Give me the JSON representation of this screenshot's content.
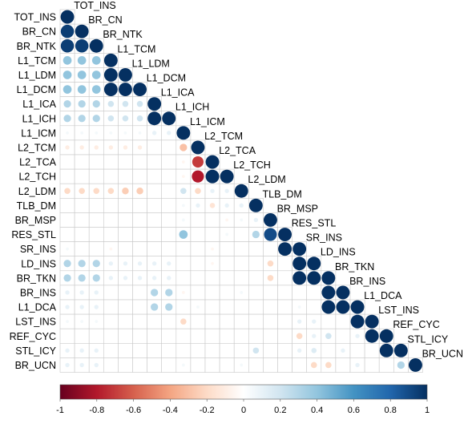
{
  "chart_data": {
    "type": "heatmap",
    "variables": [
      "TOT_INS",
      "BR_CN",
      "BR_NTK",
      "L1_TCM",
      "L1_LDM",
      "L1_DCM",
      "L1_ICA",
      "L1_ICH",
      "L1_ICM",
      "L2_TCM",
      "L2_TCA",
      "L2_TCH",
      "L2_LDM",
      "TLB_DM",
      "BR_MSP",
      "RES_STL",
      "SR_INS",
      "LD_INS",
      "BR_TKN",
      "BR_INS",
      "L1_DCA",
      "LST_INS",
      "REF_CYC",
      "STL_ICY",
      "BR_UCN"
    ],
    "matrix_layout": "lower-triangle with diagonal",
    "correlations": [
      {
        "row": "TOT_INS",
        "col": "TOT_INS",
        "value": 1.0
      },
      {
        "row": "BR_CN",
        "col": "TOT_INS",
        "value": 0.95
      },
      {
        "row": "BR_CN",
        "col": "BR_CN",
        "value": 1.0
      },
      {
        "row": "BR_NTK",
        "col": "TOT_INS",
        "value": 0.95
      },
      {
        "row": "BR_NTK",
        "col": "BR_CN",
        "value": 0.95
      },
      {
        "row": "BR_NTK",
        "col": "BR_NTK",
        "value": 1.0
      },
      {
        "row": "L1_TCM",
        "col": "TOT_INS",
        "value": 0.4
      },
      {
        "row": "L1_TCM",
        "col": "BR_CN",
        "value": 0.4
      },
      {
        "row": "L1_TCM",
        "col": "BR_NTK",
        "value": 0.4
      },
      {
        "row": "L1_TCM",
        "col": "L1_TCM",
        "value": 1.0
      },
      {
        "row": "L1_LDM",
        "col": "TOT_INS",
        "value": 0.4
      },
      {
        "row": "L1_LDM",
        "col": "BR_CN",
        "value": 0.4
      },
      {
        "row": "L1_LDM",
        "col": "BR_NTK",
        "value": 0.4
      },
      {
        "row": "L1_LDM",
        "col": "L1_TCM",
        "value": 1.0
      },
      {
        "row": "L1_LDM",
        "col": "L1_LDM",
        "value": 1.0
      },
      {
        "row": "L1_DCM",
        "col": "TOT_INS",
        "value": 0.4
      },
      {
        "row": "L1_DCM",
        "col": "BR_CN",
        "value": 0.4
      },
      {
        "row": "L1_DCM",
        "col": "BR_NTK",
        "value": 0.4
      },
      {
        "row": "L1_DCM",
        "col": "L1_TCM",
        "value": 1.0
      },
      {
        "row": "L1_DCM",
        "col": "L1_LDM",
        "value": 1.0
      },
      {
        "row": "L1_DCM",
        "col": "L1_DCM",
        "value": 1.0
      },
      {
        "row": "L1_ICA",
        "col": "TOT_INS",
        "value": 0.3
      },
      {
        "row": "L1_ICA",
        "col": "BR_CN",
        "value": 0.3
      },
      {
        "row": "L1_ICA",
        "col": "BR_NTK",
        "value": 0.3
      },
      {
        "row": "L1_ICA",
        "col": "L1_TCM",
        "value": 0.2
      },
      {
        "row": "L1_ICA",
        "col": "L1_LDM",
        "value": 0.2
      },
      {
        "row": "L1_ICA",
        "col": "L1_DCM",
        "value": 0.2
      },
      {
        "row": "L1_ICA",
        "col": "L1_ICA",
        "value": 1.0
      },
      {
        "row": "L1_ICH",
        "col": "TOT_INS",
        "value": 0.3
      },
      {
        "row": "L1_ICH",
        "col": "BR_CN",
        "value": 0.3
      },
      {
        "row": "L1_ICH",
        "col": "BR_NTK",
        "value": 0.3
      },
      {
        "row": "L1_ICH",
        "col": "L1_TCM",
        "value": 0.2
      },
      {
        "row": "L1_ICH",
        "col": "L1_LDM",
        "value": 0.2
      },
      {
        "row": "L1_ICH",
        "col": "L1_DCM",
        "value": 0.2
      },
      {
        "row": "L1_ICH",
        "col": "L1_ICA",
        "value": 1.0
      },
      {
        "row": "L1_ICH",
        "col": "L1_ICH",
        "value": 1.0
      },
      {
        "row": "L1_ICM",
        "col": "TOT_INS",
        "value": 0.05
      },
      {
        "row": "L1_ICM",
        "col": "BR_CN",
        "value": 0.05
      },
      {
        "row": "L1_ICM",
        "col": "BR_NTK",
        "value": 0.05
      },
      {
        "row": "L1_ICM",
        "col": "L1_TCM",
        "value": 0.05
      },
      {
        "row": "L1_ICM",
        "col": "L1_LDM",
        "value": 0.05
      },
      {
        "row": "L1_ICM",
        "col": "L1_DCM",
        "value": 0.05
      },
      {
        "row": "L1_ICM",
        "col": "L1_ICA",
        "value": 0.1
      },
      {
        "row": "L1_ICM",
        "col": "L1_ICH",
        "value": 0.1
      },
      {
        "row": "L1_ICM",
        "col": "L1_ICM",
        "value": 1.0
      },
      {
        "row": "L2_TCM",
        "col": "TOT_INS",
        "value": -0.1
      },
      {
        "row": "L2_TCM",
        "col": "BR_CN",
        "value": -0.1
      },
      {
        "row": "L2_TCM",
        "col": "BR_NTK",
        "value": -0.1
      },
      {
        "row": "L2_TCM",
        "col": "L1_TCM",
        "value": -0.1
      },
      {
        "row": "L2_TCM",
        "col": "L1_LDM",
        "value": -0.1
      },
      {
        "row": "L2_TCM",
        "col": "L1_DCM",
        "value": -0.1
      },
      {
        "row": "L2_TCM",
        "col": "L1_ICA",
        "value": 0.0
      },
      {
        "row": "L2_TCM",
        "col": "L1_ICH",
        "value": 0.0
      },
      {
        "row": "L2_TCM",
        "col": "L1_ICM",
        "value": -0.3
      },
      {
        "row": "L2_TCM",
        "col": "L2_TCM",
        "value": 1.0
      },
      {
        "row": "L2_TCA",
        "col": "L1_ICM",
        "value": -0.05
      },
      {
        "row": "L2_TCA",
        "col": "L2_TCM",
        "value": -0.7
      },
      {
        "row": "L2_TCA",
        "col": "L2_TCA",
        "value": 1.0
      },
      {
        "row": "L2_TCH",
        "col": "L1_ICM",
        "value": -0.05
      },
      {
        "row": "L2_TCH",
        "col": "L2_TCM",
        "value": -0.8
      },
      {
        "row": "L2_TCH",
        "col": "L2_TCA",
        "value": 1.0
      },
      {
        "row": "L2_TCH",
        "col": "L2_TCH",
        "value": 1.0
      },
      {
        "row": "L2_LDM",
        "col": "TOT_INS",
        "value": -0.2
      },
      {
        "row": "L2_LDM",
        "col": "BR_CN",
        "value": -0.2
      },
      {
        "row": "L2_LDM",
        "col": "BR_NTK",
        "value": -0.2
      },
      {
        "row": "L2_LDM",
        "col": "L1_TCM",
        "value": -0.2
      },
      {
        "row": "L2_LDM",
        "col": "L1_LDM",
        "value": -0.25
      },
      {
        "row": "L2_LDM",
        "col": "L1_DCM",
        "value": -0.25
      },
      {
        "row": "L2_LDM",
        "col": "L1_ICA",
        "value": 0.0
      },
      {
        "row": "L2_LDM",
        "col": "L1_ICH",
        "value": 0.0
      },
      {
        "row": "L2_LDM",
        "col": "L1_ICM",
        "value": 0.2
      },
      {
        "row": "L2_LDM",
        "col": "L2_TCM",
        "value": -0.2
      },
      {
        "row": "L2_LDM",
        "col": "L2_TCA",
        "value": 0.1
      },
      {
        "row": "L2_LDM",
        "col": "L2_TCH",
        "value": 0.1
      },
      {
        "row": "L2_LDM",
        "col": "L2_LDM",
        "value": 1.0
      },
      {
        "row": "TLB_DM",
        "col": "L1_ICM",
        "value": 0.05
      },
      {
        "row": "TLB_DM",
        "col": "L2_TCM",
        "value": 0.1
      },
      {
        "row": "TLB_DM",
        "col": "L2_TCA",
        "value": -0.15
      },
      {
        "row": "TLB_DM",
        "col": "L2_TCH",
        "value": 0.1
      },
      {
        "row": "TLB_DM",
        "col": "L2_LDM",
        "value": 0.1
      },
      {
        "row": "TLB_DM",
        "col": "TLB_DM",
        "value": 1.0
      },
      {
        "row": "BR_MSP",
        "col": "L1_ICM",
        "value": 0.05
      },
      {
        "row": "BR_MSP",
        "col": "L2_TCH",
        "value": -0.05
      },
      {
        "row": "BR_MSP",
        "col": "L2_LDM",
        "value": 0.05
      },
      {
        "row": "BR_MSP",
        "col": "TLB_DM",
        "value": 0.1
      },
      {
        "row": "BR_MSP",
        "col": "BR_MSP",
        "value": 1.0
      },
      {
        "row": "RES_STL",
        "col": "L1_ICM",
        "value": 0.4
      },
      {
        "row": "RES_STL",
        "col": "L2_TCH",
        "value": 0.05
      },
      {
        "row": "RES_STL",
        "col": "TLB_DM",
        "value": 0.3
      },
      {
        "row": "RES_STL",
        "col": "BR_MSP",
        "value": 0.9
      },
      {
        "row": "RES_STL",
        "col": "RES_STL",
        "value": 1.0
      },
      {
        "row": "SR_INS",
        "col": "TOT_INS",
        "value": 0.05
      },
      {
        "row": "SR_INS",
        "col": "L1_TCM",
        "value": -0.05
      },
      {
        "row": "SR_INS",
        "col": "L2_TCA",
        "value": -0.05
      },
      {
        "row": "SR_INS",
        "col": "RES_STL",
        "value": 1.0
      },
      {
        "row": "SR_INS",
        "col": "SR_INS",
        "value": 1.0
      },
      {
        "row": "LD_INS",
        "col": "TOT_INS",
        "value": 0.3
      },
      {
        "row": "LD_INS",
        "col": "BR_CN",
        "value": 0.3
      },
      {
        "row": "LD_INS",
        "col": "BR_NTK",
        "value": 0.3
      },
      {
        "row": "LD_INS",
        "col": "L1_TCM",
        "value": 0.1
      },
      {
        "row": "LD_INS",
        "col": "L1_LDM",
        "value": 0.1
      },
      {
        "row": "LD_INS",
        "col": "L1_DCM",
        "value": 0.1
      },
      {
        "row": "LD_INS",
        "col": "L1_ICA",
        "value": 0.1
      },
      {
        "row": "LD_INS",
        "col": "L1_ICH",
        "value": 0.1
      },
      {
        "row": "LD_INS",
        "col": "L2_TCA",
        "value": -0.05
      },
      {
        "row": "LD_INS",
        "col": "BR_MSP",
        "value": -0.2
      },
      {
        "row": "LD_INS",
        "col": "SR_INS",
        "value": 1.0
      },
      {
        "row": "LD_INS",
        "col": "LD_INS",
        "value": 1.0
      },
      {
        "row": "BR_TKN",
        "col": "TOT_INS",
        "value": 0.3
      },
      {
        "row": "BR_TKN",
        "col": "BR_CN",
        "value": 0.3
      },
      {
        "row": "BR_TKN",
        "col": "BR_NTK",
        "value": 0.3
      },
      {
        "row": "BR_TKN",
        "col": "L1_TCM",
        "value": 0.1
      },
      {
        "row": "BR_TKN",
        "col": "L1_LDM",
        "value": 0.1
      },
      {
        "row": "BR_TKN",
        "col": "L1_DCM",
        "value": 0.1
      },
      {
        "row": "BR_TKN",
        "col": "L1_ICA",
        "value": 0.1
      },
      {
        "row": "BR_TKN",
        "col": "L1_ICH",
        "value": 0.1
      },
      {
        "row": "BR_TKN",
        "col": "BR_MSP",
        "value": -0.2
      },
      {
        "row": "BR_TKN",
        "col": "SR_INS",
        "value": 1.0
      },
      {
        "row": "BR_TKN",
        "col": "LD_INS",
        "value": 1.0
      },
      {
        "row": "BR_TKN",
        "col": "BR_TKN",
        "value": 1.0
      },
      {
        "row": "BR_INS",
        "col": "TOT_INS",
        "value": 0.1
      },
      {
        "row": "BR_INS",
        "col": "BR_CN",
        "value": 0.1
      },
      {
        "row": "BR_INS",
        "col": "BR_NTK",
        "value": 0.1
      },
      {
        "row": "BR_INS",
        "col": "L1_ICA",
        "value": 0.3
      },
      {
        "row": "BR_INS",
        "col": "L1_ICH",
        "value": 0.3
      },
      {
        "row": "BR_INS",
        "col": "L1_ICM",
        "value": -0.05
      },
      {
        "row": "BR_INS",
        "col": "L2_LDM",
        "value": 0.05
      },
      {
        "row": "BR_INS",
        "col": "BR_TKN",
        "value": 1.0
      },
      {
        "row": "BR_INS",
        "col": "BR_INS",
        "value": 1.0
      },
      {
        "row": "L1_DCA",
        "col": "TOT_INS",
        "value": 0.1
      },
      {
        "row": "L1_DCA",
        "col": "BR_CN",
        "value": 0.1
      },
      {
        "row": "L1_DCA",
        "col": "BR_NTK",
        "value": 0.1
      },
      {
        "row": "L1_DCA",
        "col": "L1_ICA",
        "value": 0.3
      },
      {
        "row": "L1_DCA",
        "col": "L1_ICH",
        "value": 0.3
      },
      {
        "row": "L1_DCA",
        "col": "L2_TCM",
        "value": 0.05
      },
      {
        "row": "L1_DCA",
        "col": "SR_INS",
        "value": 0.05
      },
      {
        "row": "L1_DCA",
        "col": "BR_TKN",
        "value": 1.0
      },
      {
        "row": "L1_DCA",
        "col": "BR_INS",
        "value": 1.0
      },
      {
        "row": "L1_DCA",
        "col": "L1_DCA",
        "value": 1.0
      },
      {
        "row": "LST_INS",
        "col": "TOT_INS",
        "value": 0.05
      },
      {
        "row": "LST_INS",
        "col": "BR_CN",
        "value": 0.05
      },
      {
        "row": "LST_INS",
        "col": "BR_NTK",
        "value": 0.05
      },
      {
        "row": "LST_INS",
        "col": "L1_ICM",
        "value": -0.2
      },
      {
        "row": "LST_INS",
        "col": "SR_INS",
        "value": 0.1
      },
      {
        "row": "LST_INS",
        "col": "LD_INS",
        "value": 0.1
      },
      {
        "row": "LST_INS",
        "col": "L1_DCA",
        "value": 1.0
      },
      {
        "row": "LST_INS",
        "col": "LST_INS",
        "value": 1.0
      },
      {
        "row": "REF_CYC",
        "col": "SR_INS",
        "value": -0.2
      },
      {
        "row": "REF_CYC",
        "col": "LD_INS",
        "value": 0.1
      },
      {
        "row": "REF_CYC",
        "col": "BR_TKN",
        "value": 0.2
      },
      {
        "row": "REF_CYC",
        "col": "L1_DCA",
        "value": 0.1
      },
      {
        "row": "REF_CYC",
        "col": "LST_INS",
        "value": 1.0
      },
      {
        "row": "REF_CYC",
        "col": "REF_CYC",
        "value": 1.0
      },
      {
        "row": "STL_ICY",
        "col": "TOT_INS",
        "value": 0.1
      },
      {
        "row": "STL_ICY",
        "col": "BR_CN",
        "value": 0.1
      },
      {
        "row": "STL_ICY",
        "col": "BR_NTK",
        "value": 0.1
      },
      {
        "row": "STL_ICY",
        "col": "TLB_DM",
        "value": 0.2
      },
      {
        "row": "STL_ICY",
        "col": "SR_INS",
        "value": 0.1
      },
      {
        "row": "STL_ICY",
        "col": "LD_INS",
        "value": 0.15
      },
      {
        "row": "STL_ICY",
        "col": "BR_INS",
        "value": 0.1
      },
      {
        "row": "STL_ICY",
        "col": "REF_CYC",
        "value": 1.0
      },
      {
        "row": "STL_ICY",
        "col": "STL_ICY",
        "value": 1.0
      },
      {
        "row": "BR_UCN",
        "col": "TOT_INS",
        "value": 0.1
      },
      {
        "row": "BR_UCN",
        "col": "BR_CN",
        "value": 0.1
      },
      {
        "row": "BR_UCN",
        "col": "BR_NTK",
        "value": 0.1
      },
      {
        "row": "BR_UCN",
        "col": "L1_ICM",
        "value": 0.05
      },
      {
        "row": "BR_UCN",
        "col": "L2_LDM",
        "value": 0.05
      },
      {
        "row": "BR_UCN",
        "col": "LD_INS",
        "value": -0.2
      },
      {
        "row": "BR_UCN",
        "col": "BR_TKN",
        "value": -0.2
      },
      {
        "row": "BR_UCN",
        "col": "L1_DCA",
        "value": 0.1
      },
      {
        "row": "BR_UCN",
        "col": "STL_ICY",
        "value": 0.3
      },
      {
        "row": "BR_UCN",
        "col": "BR_UCN",
        "value": 1.0
      }
    ],
    "colorbar": {
      "range": [
        -1,
        1
      ],
      "ticks": [
        "-1",
        "-0.8",
        "-0.6",
        "-0.4",
        "-0.2",
        "0",
        "0.2",
        "0.4",
        "0.6",
        "0.8",
        "1"
      ],
      "colors": {
        "negative": "#67001f",
        "neutral": "#ffffff",
        "positive": "#053061"
      }
    },
    "title": "",
    "xlabel": "",
    "ylabel": ""
  }
}
